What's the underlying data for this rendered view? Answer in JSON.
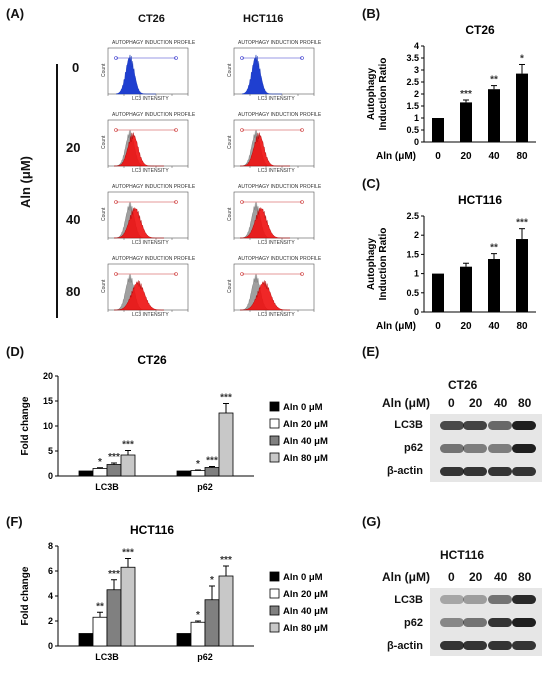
{
  "panels": {
    "A": "(A)",
    "B": "(B)",
    "C": "(C)",
    "D": "(D)",
    "E": "(E)",
    "F": "(F)",
    "G": "(G)"
  },
  "panel_a": {
    "col_headers": [
      "CT26",
      "HCT116"
    ],
    "row_doses": [
      "0",
      "20",
      "40",
      "80"
    ],
    "row_axis_label": "Aln (μM)",
    "hist_title": "AUTOPHAGY INDUCTION PROFILE",
    "hist_xlabel": "LC3 INTENSITY",
    "hist_ylabel": "Count"
  },
  "chart_data": [
    {
      "type": "bar",
      "panel": "B",
      "title": "CT26",
      "ylabel": "Autophagy Induction Ratio",
      "xlabel": "Aln (μM)",
      "categories": [
        "0",
        "20",
        "40",
        "80"
      ],
      "values": [
        1.0,
        1.65,
        2.2,
        2.85
      ],
      "errors": [
        0,
        0.1,
        0.15,
        0.38
      ],
      "significance": [
        "",
        "***",
        "**",
        "*"
      ],
      "ylim": [
        0,
        4
      ],
      "yticks": [
        0,
        0.5,
        1,
        1.5,
        2,
        2.5,
        3,
        3.5,
        4
      ],
      "ytick_labels": [
        "0",
        "0.5",
        "1",
        "1.5",
        "2",
        "2.5",
        "3",
        "3.5",
        "4"
      ],
      "color": "#000000"
    },
    {
      "type": "bar",
      "panel": "C",
      "title": "HCT116",
      "ylabel": "Autophagy Induction Ratio",
      "xlabel": "Aln (μM)",
      "categories": [
        "0",
        "20",
        "40",
        "80"
      ],
      "values": [
        1.0,
        1.18,
        1.38,
        1.9
      ],
      "errors": [
        0,
        0.09,
        0.14,
        0.27
      ],
      "significance": [
        "",
        "",
        "**",
        "***"
      ],
      "ylim": [
        0,
        2.5
      ],
      "yticks": [
        0,
        0.5,
        1,
        1.5,
        2,
        2.5
      ],
      "ytick_labels": [
        "0",
        "0.5",
        "1",
        "1.5",
        "2",
        "2.5"
      ],
      "color": "#000000"
    },
    {
      "type": "bar",
      "panel": "D",
      "title": "CT26",
      "ylabel": "Fold change",
      "categories": [
        "LC3B",
        "p62"
      ],
      "series": [
        {
          "name": "Aln 0 μM",
          "values": [
            1.0,
            1.0
          ],
          "errors": [
            0,
            0
          ],
          "sig": [
            "",
            ""
          ],
          "color": "#000000"
        },
        {
          "name": "Aln 20 μM",
          "values": [
            1.5,
            1.1
          ],
          "errors": [
            0.15,
            0.1
          ],
          "sig": [
            "*",
            "*"
          ],
          "color": "#ffffff"
        },
        {
          "name": "Aln 40 μM",
          "values": [
            2.3,
            1.7
          ],
          "errors": [
            0.3,
            0.2
          ],
          "sig": [
            "***",
            "***"
          ],
          "color": "#808080"
        },
        {
          "name": "Aln 80 μM",
          "values": [
            4.2,
            12.6
          ],
          "errors": [
            0.9,
            1.9
          ],
          "sig": [
            "***",
            "***"
          ],
          "color": "#c8c8c8"
        }
      ],
      "ylim": [
        0,
        20
      ],
      "yticks": [
        0,
        5,
        10,
        15,
        20
      ],
      "ytick_labels": [
        "0",
        "5",
        "10",
        "15",
        "20"
      ],
      "legend": "right"
    },
    {
      "type": "bar",
      "panel": "F",
      "title": "HCT116",
      "ylabel": "Fold change",
      "categories": [
        "LC3B",
        "p62"
      ],
      "series": [
        {
          "name": "Aln 0 μM",
          "values": [
            1.0,
            1.0
          ],
          "errors": [
            0,
            0
          ],
          "sig": [
            "",
            ""
          ],
          "color": "#000000"
        },
        {
          "name": "Aln 20 μM",
          "values": [
            2.3,
            1.9
          ],
          "errors": [
            0.4,
            0.1
          ],
          "sig": [
            "**",
            "*"
          ],
          "color": "#ffffff"
        },
        {
          "name": "Aln 40 μM",
          "values": [
            4.5,
            3.7
          ],
          "errors": [
            0.8,
            1.1
          ],
          "sig": [
            "***",
            "*"
          ],
          "color": "#808080"
        },
        {
          "name": "Aln 80 μM",
          "values": [
            6.3,
            5.6
          ],
          "errors": [
            0.7,
            0.8
          ],
          "sig": [
            "***",
            "***"
          ],
          "color": "#c8c8c8"
        }
      ],
      "ylim": [
        0,
        8
      ],
      "yticks": [
        0,
        2,
        4,
        6,
        8
      ],
      "ytick_labels": [
        "0",
        "2",
        "4",
        "6",
        "8"
      ],
      "legend": "right"
    }
  ],
  "blot_e": {
    "title": "CT26",
    "header": "Aln (μM)",
    "lanes": [
      "0",
      "20",
      "40",
      "80"
    ],
    "rows": [
      "LC3B",
      "p62",
      "β-actin"
    ]
  },
  "blot_g": {
    "title": "HCT116",
    "header": "Aln (μM)",
    "lanes": [
      "0",
      "20",
      "40",
      "80"
    ],
    "rows": [
      "LC3B",
      "p62",
      "β-actin"
    ]
  }
}
